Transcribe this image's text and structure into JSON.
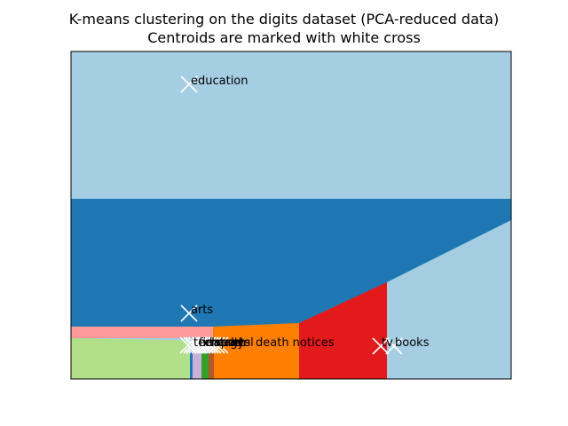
{
  "chart_data": {
    "type": "heatmap",
    "title": "K-means clustering on the digits dataset (PCA-reduced data)",
    "subtitle": "Centroids are marked with white cross",
    "xlabel": "",
    "ylabel": "",
    "x_ticks": "none",
    "y_ticks": "none",
    "grid": false,
    "legend": "none",
    "colors": {
      "light_blue": "#a6cee3",
      "dark_blue": "#1f78b4",
      "pink": "#fb9a99",
      "light_green": "#b2df8a",
      "orange": "#ff7f00",
      "red": "#e31a1c",
      "dark_green": "#33a02c",
      "brown": "#b15928",
      "teal": "#1f78b4",
      "lavender": "#cab2d6",
      "centroid_marker": "#ffffff"
    },
    "regions": [
      {
        "cluster": "education",
        "color": "#a6cee3"
      },
      {
        "cluster": "arts",
        "color": "#1f78b4"
      },
      {
        "cluster": "pink",
        "color": "#fb9a99"
      },
      {
        "cluster": "light green",
        "color": "#b2df8a"
      },
      {
        "cluster": "orange",
        "color": "#ff7f00"
      },
      {
        "cluster": "red",
        "color": "#e31a1c"
      },
      {
        "cluster": "books",
        "color": "#a6cee3"
      }
    ],
    "centroid_labels": {
      "education": "education",
      "arts": "arts",
      "death_notices": "death notices",
      "books": "books",
      "tv": "tv",
      "cluster_fragments": [
        "tech",
        "finance",
        "energy",
        "health",
        "sports",
        "travel"
      ]
    }
  }
}
